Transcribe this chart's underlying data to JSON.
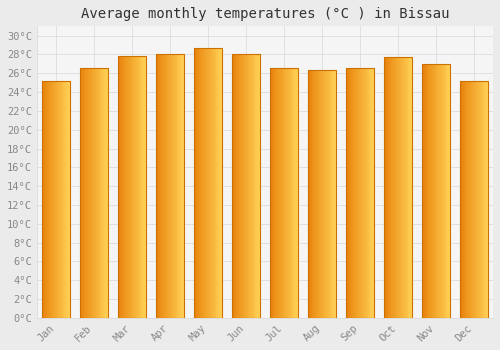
{
  "title": "Average monthly temperatures (°C ) in Bissau",
  "months": [
    "Jan",
    "Feb",
    "Mar",
    "Apr",
    "May",
    "Jun",
    "Jul",
    "Aug",
    "Sep",
    "Oct",
    "Nov",
    "Dec"
  ],
  "values": [
    25.2,
    26.6,
    27.8,
    28.0,
    28.7,
    28.0,
    26.6,
    26.3,
    26.6,
    27.7,
    27.0,
    25.2
  ],
  "bar_color_dark": "#E8820A",
  "bar_color_light": "#FFD055",
  "bar_edge_color": "#CC7000",
  "background_color": "#ebebeb",
  "plot_bg_color": "#f5f5f5",
  "ylim": [
    0,
    31
  ],
  "yticks": [
    0,
    2,
    4,
    6,
    8,
    10,
    12,
    14,
    16,
    18,
    20,
    22,
    24,
    26,
    28,
    30
  ],
  "grid_color": "#d8d8d8",
  "title_fontsize": 10,
  "tick_fontsize": 7.5,
  "tick_color": "#888888",
  "bar_width": 0.75
}
